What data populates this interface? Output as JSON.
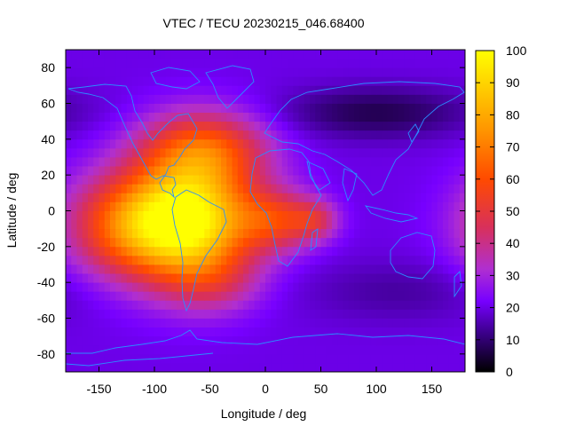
{
  "chart_data": {
    "type": "heatmap",
    "title": "VTEC / TECU 20230215_046.68400",
    "xlabel": "Longitude / deg",
    "ylabel": "Latitude / deg",
    "xlim": [
      -180,
      180
    ],
    "ylim": [
      -90,
      90
    ],
    "xticks": [
      -150,
      -100,
      -50,
      0,
      50,
      100,
      150
    ],
    "yticks": [
      -80,
      -60,
      -40,
      -20,
      0,
      20,
      40,
      60,
      80
    ],
    "colorbar": {
      "min": 0,
      "max": 100,
      "ticks": [
        0,
        10,
        20,
        30,
        40,
        50,
        60,
        70,
        80,
        90,
        100
      ],
      "palette": [
        "#000000",
        "#3b0089",
        "#7700ff",
        "#b02fd0",
        "#d8305b",
        "#ff4a00",
        "#ff9400",
        "#ffd400",
        "#ffff00"
      ]
    },
    "coastline_color": "#2b8cff",
    "grid": false,
    "field": {
      "background": 20,
      "features": [
        {
          "lon": -65,
          "lat": -5,
          "amp": 70,
          "sx": 38,
          "sy": 24
        },
        {
          "lon": -120,
          "lat": -8,
          "amp": 45,
          "sx": 40,
          "sy": 20
        },
        {
          "lon": -55,
          "lat": 35,
          "amp": 35,
          "sx": 40,
          "sy": 15
        },
        {
          "lon": 10,
          "lat": -5,
          "amp": 30,
          "sx": 25,
          "sy": 12
        },
        {
          "lon": 45,
          "lat": -5,
          "amp": 20,
          "sx": 15,
          "sy": 8
        },
        {
          "lon": -45,
          "lat": -40,
          "amp": 12,
          "sx": 30,
          "sy": 12
        },
        {
          "lon": 100,
          "lat": 55,
          "amp": -13,
          "sx": 60,
          "sy": 10
        },
        {
          "lon": 120,
          "lat": -45,
          "amp": -6,
          "sx": 60,
          "sy": 12
        }
      ]
    }
  }
}
